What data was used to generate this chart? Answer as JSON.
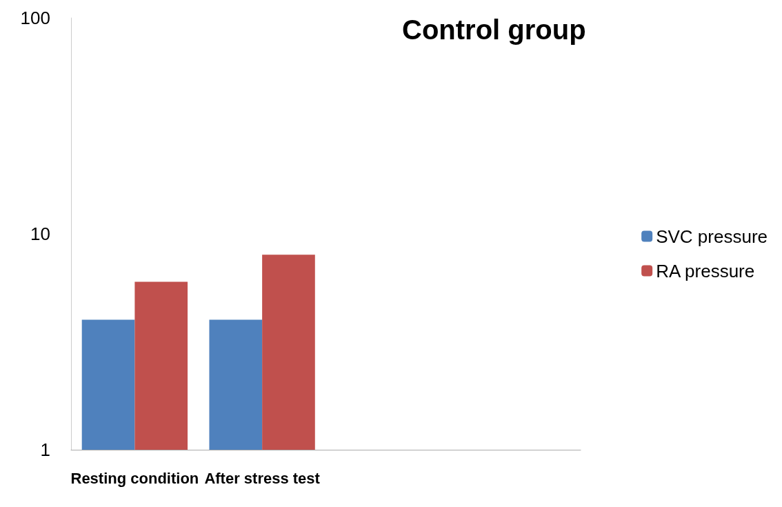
{
  "chart_data": {
    "type": "bar",
    "title": "Control group",
    "categories": [
      "Resting condition",
      "After stress test",
      null,
      null
    ],
    "series": [
      {
        "name": "SVC pressure",
        "color": "#4f81bd",
        "values": [
          4,
          4,
          null,
          null
        ]
      },
      {
        "name": "RA pressure",
        "color": "#c0504d",
        "values": [
          6,
          8,
          null,
          null
        ]
      }
    ],
    "log": "y",
    "ylim": [
      1,
      100
    ],
    "yticks": [
      1,
      10,
      100
    ],
    "grid": false,
    "legend": "right"
  }
}
